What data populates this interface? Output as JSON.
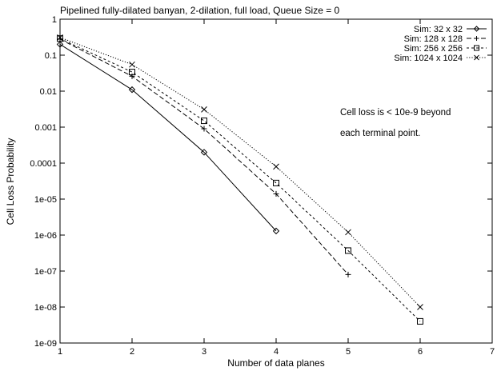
{
  "chart_data": {
    "type": "line",
    "title": "Pipelined fully-dilated banyan, 2-dilation, full load, Queue Size = 0",
    "xlabel": "Number of data planes",
    "ylabel": "Cell Loss Probability",
    "xlim": [
      1,
      7
    ],
    "ylim": [
      1e-09,
      1
    ],
    "yscale": "log",
    "x_ticks": [
      "1",
      "2",
      "3",
      "4",
      "5",
      "6",
      "7"
    ],
    "y_ticks": [
      "1",
      "0.1",
      "0.01",
      "0.001",
      "0.0001",
      "1e-05",
      "1e-06",
      "1e-07",
      "1e-08",
      "1e-09"
    ],
    "grid": false,
    "legend_position": "top-right",
    "series": [
      {
        "name": "Sim: 32 x 32",
        "marker": "diamond",
        "line": "solid",
        "x": [
          1,
          2,
          3,
          4
        ],
        "y": [
          0.2,
          0.011,
          0.0002,
          1.3e-06
        ]
      },
      {
        "name": "Sim: 128 x 128",
        "marker": "plus",
        "line": "dashed",
        "x": [
          1,
          2,
          3,
          4,
          5
        ],
        "y": [
          0.28,
          0.026,
          0.0009,
          1.4e-05,
          8e-08
        ]
      },
      {
        "name": "Sim: 256 x 256",
        "marker": "square",
        "line": "short-dashed",
        "x": [
          1,
          2,
          3,
          4,
          5,
          6
        ],
        "y": [
          0.29,
          0.034,
          0.0015,
          2.8e-05,
          3.7e-07,
          4e-09
        ]
      },
      {
        "name": "Sim: 1024 x 1024",
        "marker": "cross",
        "line": "dotted",
        "x": [
          1,
          2,
          3,
          4,
          5,
          6
        ],
        "y": [
          0.31,
          0.055,
          0.0031,
          8e-05,
          1.2e-06,
          1e-08
        ]
      }
    ],
    "annotation": [
      "Cell loss is < 10e-9 beyond",
      "each terminal point."
    ]
  }
}
